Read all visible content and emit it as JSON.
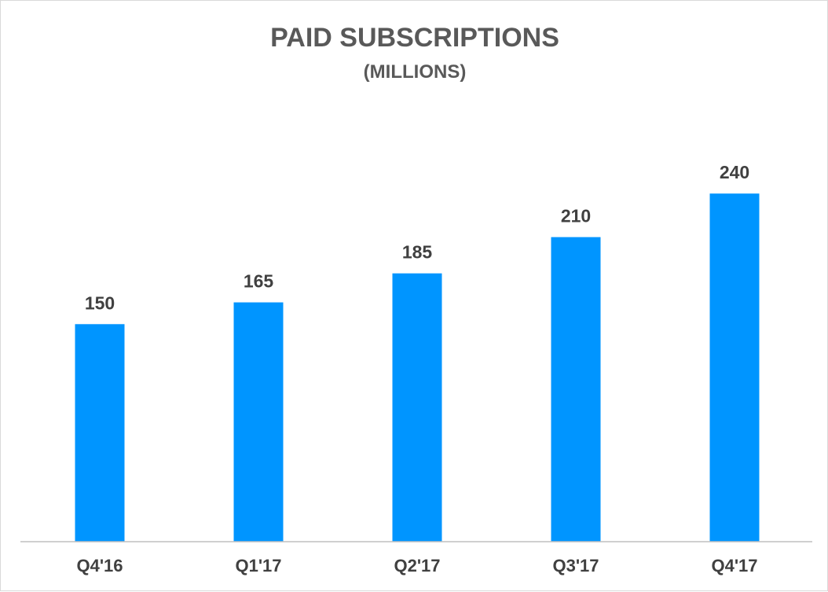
{
  "chart_data": {
    "type": "bar",
    "title": "PAID SUBSCRIPTIONS",
    "subtitle": "(MILLIONS)",
    "categories": [
      "Q4'16",
      "Q1'17",
      "Q2'17",
      "Q3'17",
      "Q4'17"
    ],
    "values": [
      150,
      165,
      185,
      210,
      240
    ],
    "data_labels": [
      "150",
      "165",
      "185",
      "210",
      "240"
    ],
    "xlabel": "",
    "ylabel": "",
    "ylim": [
      0,
      300
    ],
    "grid": false,
    "legend": "none",
    "bar_color": "#0095FF",
    "axis_color": "#bfbfbf"
  }
}
